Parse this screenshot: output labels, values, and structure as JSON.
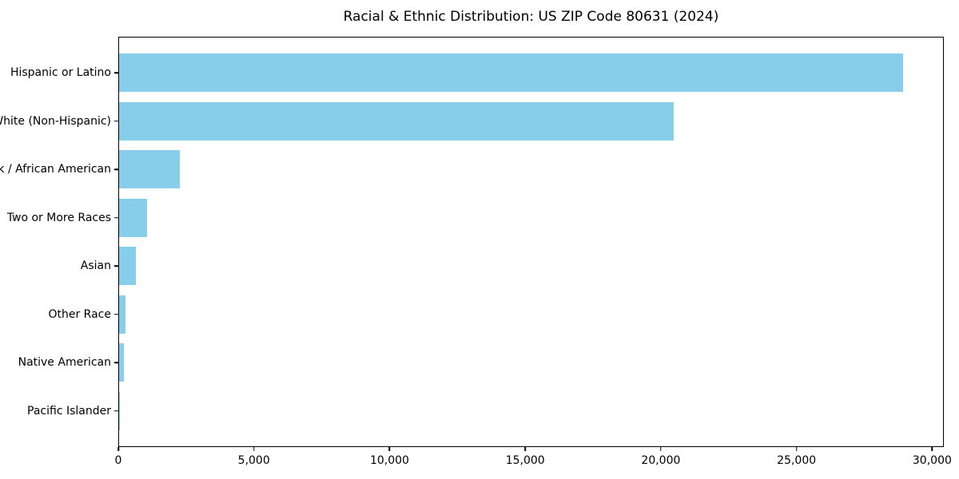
{
  "title": "Racial & Ethnic Distribution: US ZIP Code 80631 (2024)",
  "colors": {
    "bar": "#87CEEB",
    "axis": "#000000",
    "background": "#FFFFFF",
    "text": "#000000"
  },
  "chart_data": {
    "type": "bar",
    "orientation": "horizontal",
    "title": "Racial & Ethnic Distribution: US ZIP Code 80631 (2024)",
    "categories": [
      "Hispanic or Latino",
      "White (Non-Hispanic)",
      "Black / African American",
      "Two or More Races",
      "Asian",
      "Other Race",
      "Native American",
      "Pacific Islander"
    ],
    "values": [
      28950,
      20470,
      2240,
      1040,
      620,
      250,
      175,
      30
    ],
    "xlabel": "",
    "ylabel": "",
    "xlim": [
      0,
      30430
    ],
    "xticks": [
      0,
      5000,
      10000,
      15000,
      20000,
      25000,
      30000
    ],
    "xtick_labels": [
      "0",
      "5,000",
      "10,000",
      "15,000",
      "20,000",
      "25,000",
      "30,000"
    ],
    "grid": false,
    "legend_position": "none",
    "bar_color": "#87CEEB"
  }
}
